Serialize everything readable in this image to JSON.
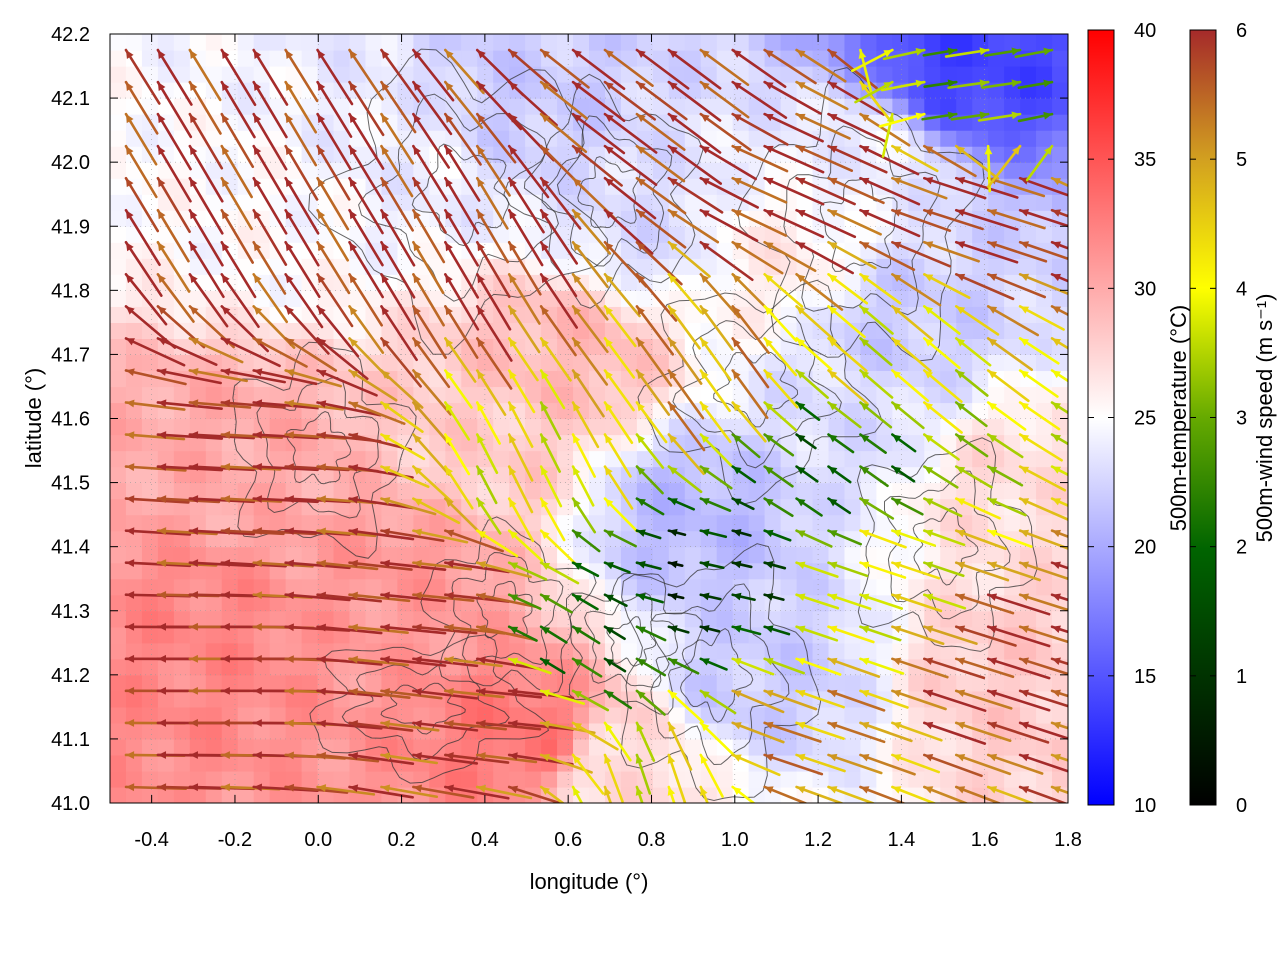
{
  "chart_data": {
    "type": "heatmap",
    "title": "",
    "xlabel": "longitude (°)",
    "ylabel": "latitude (°)",
    "xlim": [
      -0.5,
      1.8
    ],
    "ylim": [
      41.0,
      42.2
    ],
    "xticks": [
      -0.4,
      -0.2,
      0.0,
      0.2,
      0.4,
      0.6,
      0.8,
      1.0,
      1.2,
      1.4,
      1.6,
      1.8
    ],
    "xtick_labels": [
      "-0.4",
      "-0.2",
      "0.0",
      "0.2",
      "0.4",
      "0.6",
      "0.8",
      "1.0",
      "1.2",
      "1.4",
      "1.6",
      "1.8"
    ],
    "yticks": [
      41.0,
      41.1,
      41.2,
      41.3,
      41.4,
      41.5,
      41.6,
      41.7,
      41.8,
      41.9,
      42.0,
      42.1,
      42.2
    ],
    "ytick_labels": [
      "41.0",
      "41.1",
      "41.2",
      "41.3",
      "41.4",
      "41.5",
      "41.6",
      "41.7",
      "41.8",
      "41.9",
      "42.0",
      "42.1",
      "42.2"
    ],
    "grid": true,
    "layers": {
      "temperature_field": "500m-temperature",
      "wind_vectors": "500m-wind speed",
      "terrain_contours": true
    },
    "temperature_colorbar": {
      "label": "500m-temperature (°C)",
      "range": [
        10,
        40
      ],
      "ticks": [
        10,
        15,
        20,
        25,
        30,
        35,
        40
      ],
      "tick_labels": [
        "10",
        "15",
        "20",
        "25",
        "30",
        "35",
        "40"
      ],
      "colors": [
        "#0000ff",
        "#ffffff",
        "#ff0000"
      ]
    },
    "wind_colorbar": {
      "label": "500m-wind speed (m s⁻¹)",
      "range": [
        0,
        6
      ],
      "ticks": [
        0,
        1,
        2,
        3,
        4,
        5,
        6
      ],
      "tick_labels": [
        "0",
        "1",
        "2",
        "3",
        "4",
        "5",
        "6"
      ],
      "colors": [
        "#000000",
        "#006400",
        "#ffff00",
        "#d2a020",
        "#a52a2a"
      ]
    },
    "temperature_regions": [
      {
        "lon": -0.3,
        "lat": 41.25,
        "temp": 32
      },
      {
        "lon": -0.2,
        "lat": 41.55,
        "temp": 30
      },
      {
        "lon": 0.2,
        "lat": 41.35,
        "temp": 31
      },
      {
        "lon": 0.5,
        "lat": 41.1,
        "temp": 33
      },
      {
        "lon": 0.6,
        "lat": 41.7,
        "temp": 29
      },
      {
        "lon": 0.4,
        "lat": 41.55,
        "temp": 28
      },
      {
        "lon": -0.1,
        "lat": 41.9,
        "temp": 25
      },
      {
        "lon": 0.2,
        "lat": 42.0,
        "temp": 24
      },
      {
        "lon": 0.5,
        "lat": 42.1,
        "temp": 22
      },
      {
        "lon": 0.8,
        "lat": 41.9,
        "temp": 23
      },
      {
        "lon": 0.9,
        "lat": 41.45,
        "temp": 21
      },
      {
        "lon": 1.05,
        "lat": 41.2,
        "temp": 22
      },
      {
        "lon": 1.3,
        "lat": 41.6,
        "temp": 23
      },
      {
        "lon": 1.4,
        "lat": 41.75,
        "temp": 22
      },
      {
        "lon": 1.55,
        "lat": 42.15,
        "temp": 14
      },
      {
        "lon": 1.3,
        "lat": 42.0,
        "temp": 24
      },
      {
        "lon": 1.65,
        "lat": 41.5,
        "temp": 27
      },
      {
        "lon": 1.7,
        "lat": 41.2,
        "temp": 28
      },
      {
        "lon": 1.1,
        "lat": 41.85,
        "temp": 26
      },
      {
        "lon": 0.7,
        "lat": 41.05,
        "temp": 27
      }
    ],
    "wind_regions": [
      {
        "lon": -0.3,
        "lat": 41.2,
        "u": -1.0,
        "v": 0.0,
        "speed": 6
      },
      {
        "lon": -0.2,
        "lat": 41.5,
        "u": -1.0,
        "v": 0.05,
        "speed": 6
      },
      {
        "lon": 0.2,
        "lat": 41.3,
        "u": -1.0,
        "v": 0.1,
        "speed": 6
      },
      {
        "lon": 0.4,
        "lat": 41.15,
        "u": -1.0,
        "v": 0.1,
        "speed": 6
      },
      {
        "lon": -0.2,
        "lat": 42.0,
        "u": -0.5,
        "v": 0.85,
        "speed": 6
      },
      {
        "lon": 0.3,
        "lat": 41.9,
        "u": -0.5,
        "v": 0.85,
        "speed": 6
      },
      {
        "lon": 0.5,
        "lat": 41.55,
        "u": -0.3,
        "v": 0.6,
        "speed": 4
      },
      {
        "lon": 0.6,
        "lat": 41.25,
        "u": -0.8,
        "v": 0.5,
        "speed": 2
      },
      {
        "lon": 0.9,
        "lat": 41.35,
        "u": -0.9,
        "v": 0.2,
        "speed": 1
      },
      {
        "lon": 1.2,
        "lat": 41.55,
        "u": -0.7,
        "v": 0.5,
        "speed": 2
      },
      {
        "lon": 1.35,
        "lat": 41.35,
        "u": -0.9,
        "v": 0.3,
        "speed": 4
      },
      {
        "lon": 1.6,
        "lat": 41.25,
        "u": -0.95,
        "v": 0.3,
        "speed": 6
      },
      {
        "lon": 1.55,
        "lat": 41.95,
        "u": -0.95,
        "v": 0.3,
        "speed": 6
      },
      {
        "lon": 1.1,
        "lat": 42.0,
        "u": -0.9,
        "v": 0.4,
        "speed": 6
      },
      {
        "lon": 0.8,
        "lat": 42.1,
        "u": -0.8,
        "v": 0.6,
        "speed": 6
      },
      {
        "lon": 1.6,
        "lat": 42.1,
        "u": 0.7,
        "v": 0.1,
        "speed": 3
      },
      {
        "lon": 1.3,
        "lat": 41.7,
        "u": -0.7,
        "v": 0.6,
        "speed": 4
      },
      {
        "lon": 0.9,
        "lat": 41.7,
        "u": -0.5,
        "v": 0.7,
        "speed": 5
      },
      {
        "lon": 1.1,
        "lat": 41.1,
        "u": -0.9,
        "v": 0.3,
        "speed": 5
      },
      {
        "lon": 0.8,
        "lat": 41.05,
        "u": -0.3,
        "v": 0.9,
        "speed": 4
      }
    ],
    "terrain_contours_description": "dark gray elevation contour lines overlaid"
  }
}
